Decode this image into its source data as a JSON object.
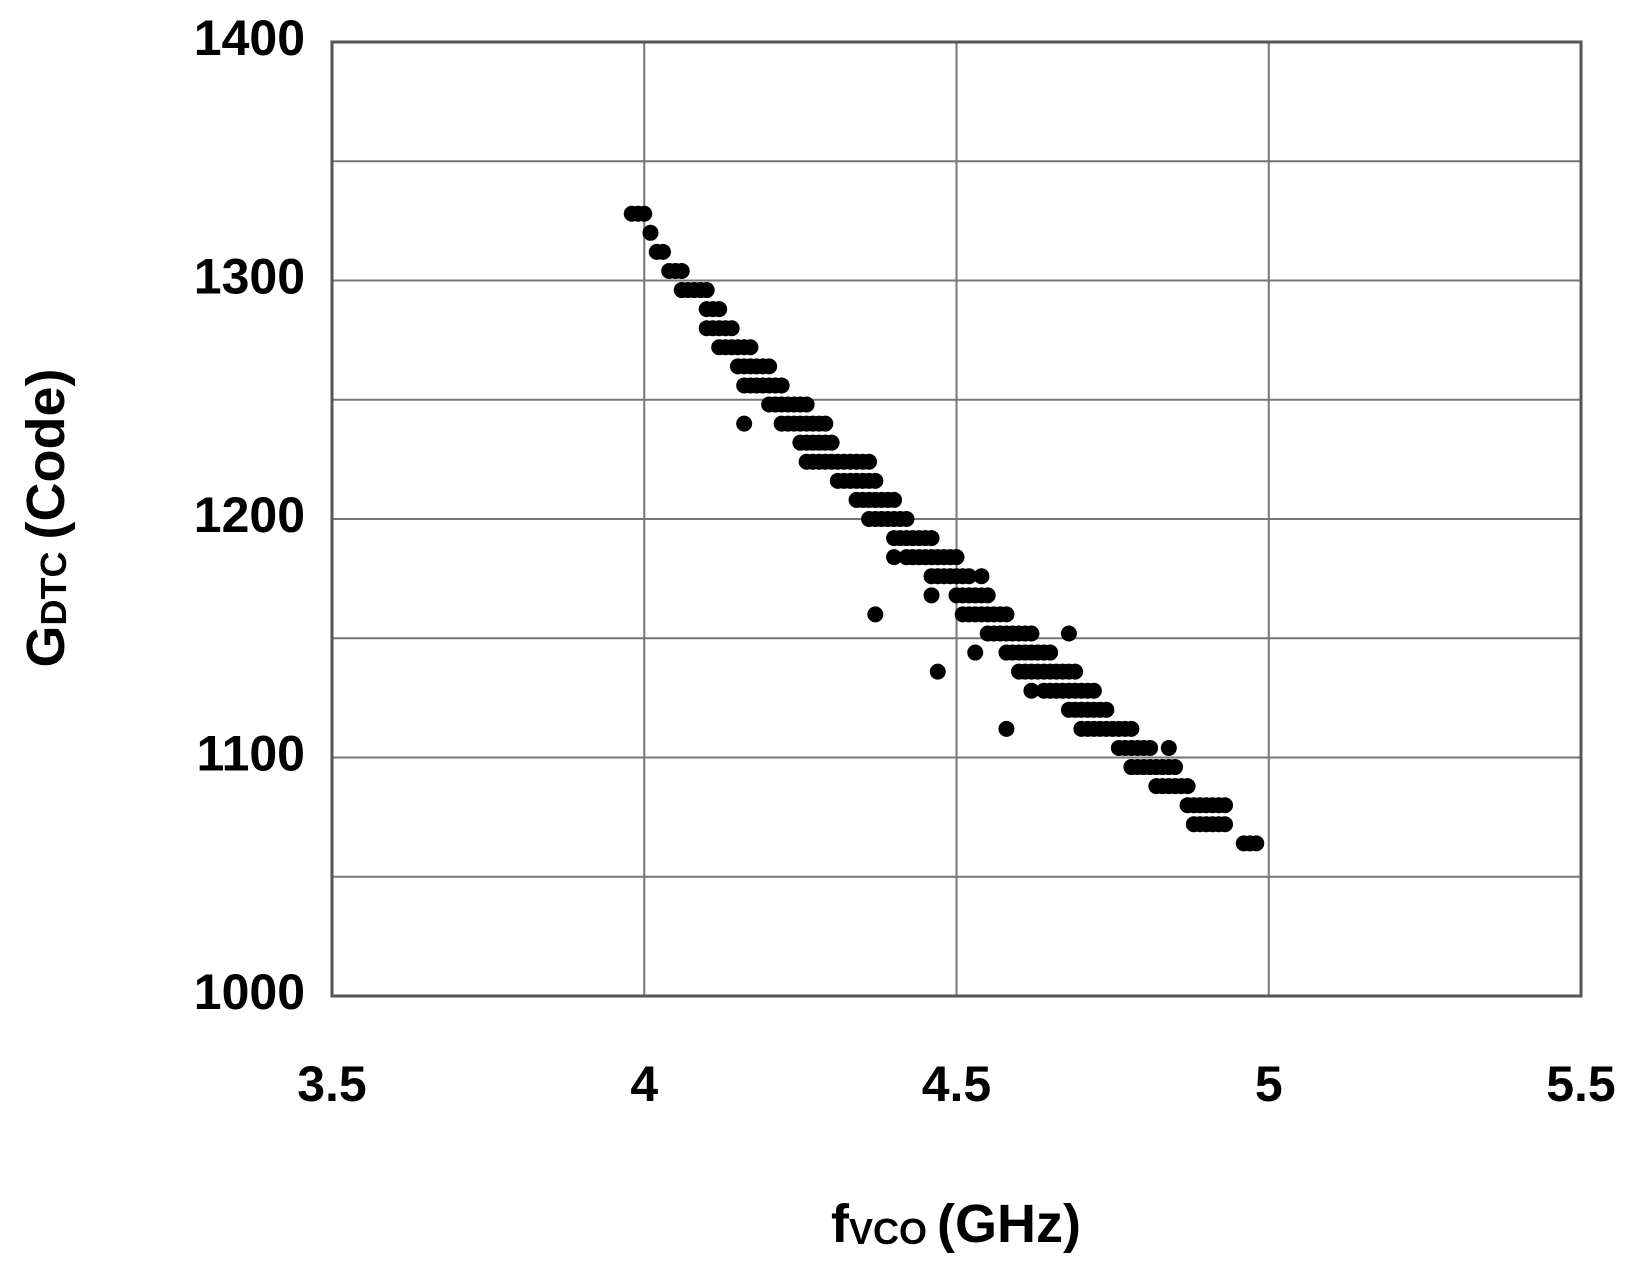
{
  "chart_data": {
    "type": "scatter",
    "xlabel_parts": [
      "f",
      "VCO",
      "(GHz)"
    ],
    "ylabel_parts": [
      "G",
      "DTC",
      "(Code)"
    ],
    "xlim": [
      3.5,
      5.5
    ],
    "xticks": [
      3.5,
      4,
      4.5,
      5,
      5.5
    ],
    "ylim": [
      1000,
      1400
    ],
    "yticks": [
      1000,
      1100,
      1200,
      1300,
      1400
    ],
    "minor_yticks": [
      1050,
      1150,
      1250,
      1350
    ],
    "grid": true,
    "color": "#000000",
    "x": [
      3.98,
      3.99,
      4.0,
      4.01,
      4.02,
      4.03,
      4.04,
      4.05,
      4.06,
      4.06,
      4.07,
      4.08,
      4.09,
      4.1,
      4.1,
      4.11,
      4.12,
      4.1,
      4.11,
      4.12,
      4.13,
      4.14,
      4.12,
      4.13,
      4.14,
      4.15,
      4.16,
      4.17,
      4.15,
      4.16,
      4.17,
      4.18,
      4.19,
      4.2,
      4.16,
      4.17,
      4.18,
      4.19,
      4.2,
      4.21,
      4.22,
      4.2,
      4.21,
      4.22,
      4.23,
      4.24,
      4.25,
      4.26,
      4.16,
      4.22,
      4.23,
      4.24,
      4.25,
      4.26,
      4.27,
      4.28,
      4.29,
      4.25,
      4.26,
      4.27,
      4.28,
      4.29,
      4.3,
      4.26,
      4.27,
      4.28,
      4.29,
      4.3,
      4.31,
      4.32,
      4.33,
      4.34,
      4.35,
      4.36,
      4.31,
      4.32,
      4.33,
      4.34,
      4.35,
      4.36,
      4.37,
      4.34,
      4.35,
      4.36,
      4.37,
      4.38,
      4.39,
      4.4,
      4.36,
      4.37,
      4.38,
      4.39,
      4.4,
      4.41,
      4.42,
      4.4,
      4.41,
      4.42,
      4.43,
      4.44,
      4.45,
      4.46,
      4.4,
      4.42,
      4.43,
      4.44,
      4.45,
      4.46,
      4.47,
      4.48,
      4.49,
      4.5,
      4.46,
      4.47,
      4.48,
      4.49,
      4.5,
      4.51,
      4.52,
      4.54,
      4.46,
      4.5,
      4.51,
      4.52,
      4.53,
      4.54,
      4.55,
      4.37,
      4.51,
      4.52,
      4.53,
      4.54,
      4.55,
      4.56,
      4.57,
      4.58,
      4.55,
      4.56,
      4.57,
      4.58,
      4.59,
      4.6,
      4.61,
      4.62,
      4.68,
      4.53,
      4.58,
      4.59,
      4.6,
      4.61,
      4.62,
      4.63,
      4.64,
      4.65,
      4.47,
      4.6,
      4.61,
      4.62,
      4.63,
      4.64,
      4.65,
      4.66,
      4.67,
      4.68,
      4.69,
      4.62,
      4.64,
      4.65,
      4.66,
      4.67,
      4.68,
      4.69,
      4.7,
      4.71,
      4.72,
      4.68,
      4.69,
      4.7,
      4.71,
      4.72,
      4.73,
      4.74,
      4.58,
      4.7,
      4.71,
      4.72,
      4.73,
      4.74,
      4.75,
      4.76,
      4.77,
      4.78,
      4.76,
      4.77,
      4.78,
      4.79,
      4.8,
      4.81,
      4.84,
      4.78,
      4.79,
      4.8,
      4.81,
      4.82,
      4.83,
      4.84,
      4.85,
      4.82,
      4.83,
      4.84,
      4.85,
      4.86,
      4.87,
      4.87,
      4.88,
      4.89,
      4.9,
      4.91,
      4.92,
      4.93,
      4.88,
      4.89,
      4.9,
      4.91,
      4.92,
      4.93,
      4.96,
      4.97,
      4.98
    ],
    "values": [
      1328,
      1328,
      1328,
      1320,
      1312,
      1312,
      1304,
      1304,
      1304,
      1296,
      1296,
      1296,
      1296,
      1296,
      1288,
      1288,
      1288,
      1280,
      1280,
      1280,
      1280,
      1280,
      1272,
      1272,
      1272,
      1272,
      1272,
      1272,
      1264,
      1264,
      1264,
      1264,
      1264,
      1264,
      1256,
      1256,
      1256,
      1256,
      1256,
      1256,
      1256,
      1248,
      1248,
      1248,
      1248,
      1248,
      1248,
      1248,
      1240,
      1240,
      1240,
      1240,
      1240,
      1240,
      1240,
      1240,
      1240,
      1232,
      1232,
      1232,
      1232,
      1232,
      1232,
      1224,
      1224,
      1224,
      1224,
      1224,
      1224,
      1224,
      1224,
      1224,
      1224,
      1224,
      1216,
      1216,
      1216,
      1216,
      1216,
      1216,
      1216,
      1208,
      1208,
      1208,
      1208,
      1208,
      1208,
      1208,
      1200,
      1200,
      1200,
      1200,
      1200,
      1200,
      1200,
      1192,
      1192,
      1192,
      1192,
      1192,
      1192,
      1192,
      1184,
      1184,
      1184,
      1184,
      1184,
      1184,
      1184,
      1184,
      1184,
      1184,
      1176,
      1176,
      1176,
      1176,
      1176,
      1176,
      1176,
      1176,
      1168,
      1168,
      1168,
      1168,
      1168,
      1168,
      1168,
      1160,
      1160,
      1160,
      1160,
      1160,
      1160,
      1160,
      1160,
      1160,
      1152,
      1152,
      1152,
      1152,
      1152,
      1152,
      1152,
      1152,
      1152,
      1144,
      1144,
      1144,
      1144,
      1144,
      1144,
      1144,
      1144,
      1144,
      1136,
      1136,
      1136,
      1136,
      1136,
      1136,
      1136,
      1136,
      1136,
      1136,
      1136,
      1128,
      1128,
      1128,
      1128,
      1128,
      1128,
      1128,
      1128,
      1128,
      1128,
      1120,
      1120,
      1120,
      1120,
      1120,
      1120,
      1120,
      1112,
      1112,
      1112,
      1112,
      1112,
      1112,
      1112,
      1112,
      1112,
      1112,
      1104,
      1104,
      1104,
      1104,
      1104,
      1104,
      1104,
      1096,
      1096,
      1096,
      1096,
      1096,
      1096,
      1096,
      1096,
      1088,
      1088,
      1088,
      1088,
      1088,
      1088,
      1080,
      1080,
      1080,
      1080,
      1080,
      1080,
      1080,
      1072,
      1072,
      1072,
      1072,
      1072,
      1072,
      1064,
      1064,
      1064
    ]
  }
}
